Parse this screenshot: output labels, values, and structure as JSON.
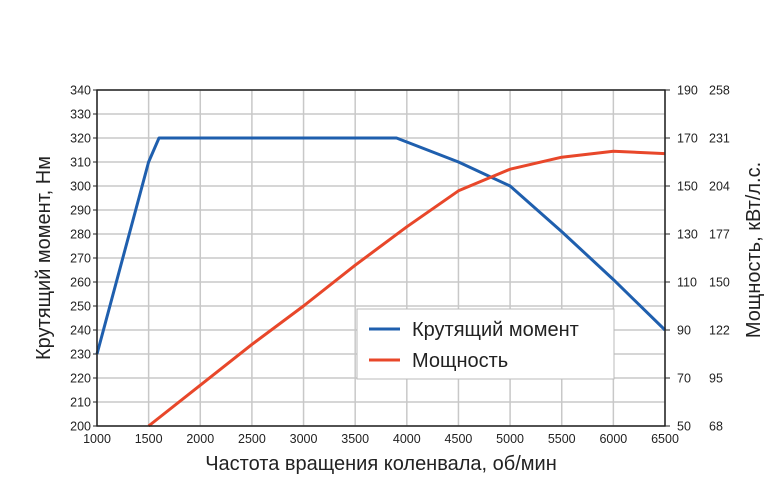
{
  "chart_data": {
    "type": "line",
    "title": "",
    "xlabel": "Частота вращения коленвала, об/мин",
    "ylabel": "Крутящий момент, Нм",
    "y2label": "Мощность, кВт/л.с.",
    "xlim": [
      1000,
      6500
    ],
    "ylim": [
      200,
      340
    ],
    "y2lim_kw": [
      50,
      190
    ],
    "x_ticks": [
      1000,
      1500,
      2000,
      2500,
      3000,
      3500,
      4000,
      4500,
      5000,
      5500,
      6000,
      6500
    ],
    "y_ticks": [
      200,
      210,
      220,
      230,
      240,
      250,
      260,
      270,
      280,
      290,
      300,
      310,
      320,
      330,
      340
    ],
    "y2_ticks_kw": [
      50,
      70,
      90,
      110,
      130,
      150,
      170,
      190
    ],
    "y2_ticks_hp": [
      68,
      95,
      122,
      150,
      177,
      204,
      231,
      258
    ],
    "grid": true,
    "legend_position": "bottom-center",
    "series": [
      {
        "name": "Крутящий момент",
        "axis": "left",
        "color": "#1f5fae",
        "x": [
          1000,
          1500,
          1600,
          3900,
          4500,
          5000,
          5500,
          6000,
          6500
        ],
        "values": [
          230,
          310,
          320,
          320,
          310,
          300,
          281,
          261,
          240
        ]
      },
      {
        "name": "Мощность",
        "axis": "right",
        "color": "#e8472a",
        "x": [
          1500,
          2000,
          2500,
          3000,
          3500,
          4000,
          4500,
          5000,
          5500,
          6000,
          6500
        ],
        "values": [
          50,
          67,
          84,
          100,
          117,
          133,
          148,
          157,
          162,
          164.5,
          163.5
        ]
      }
    ]
  }
}
